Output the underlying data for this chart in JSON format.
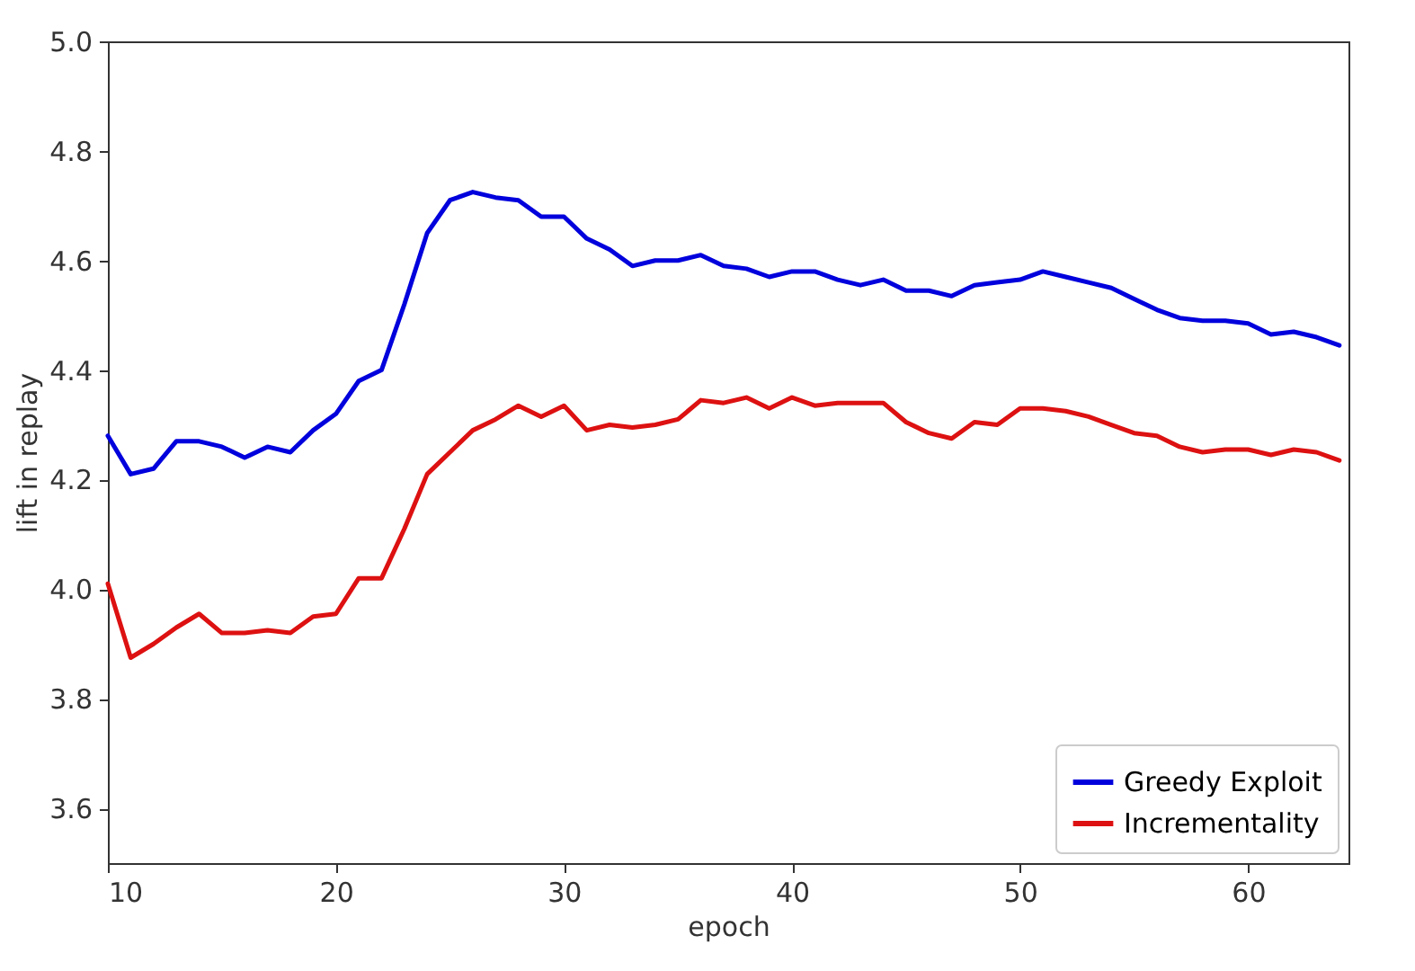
{
  "chart_data": {
    "type": "line",
    "xlabel": "epoch",
    "ylabel": "lift in replay",
    "xlim": [
      10,
      64.4
    ],
    "ylim": [
      3.5,
      5.0
    ],
    "xticks": [
      10,
      20,
      30,
      40,
      50,
      60
    ],
    "yticks": [
      3.6,
      3.8,
      {
        "value": 4,
        "label": "4.0"
      },
      4.2,
      4.4,
      4.6,
      4.8,
      {
        "value": 5,
        "label": "5.0"
      }
    ],
    "x": [
      10,
      11,
      12,
      13,
      14,
      15,
      16,
      17,
      18,
      19,
      20,
      21,
      22,
      23,
      24,
      25,
      26,
      27,
      28,
      29,
      30,
      31,
      32,
      33,
      34,
      35,
      36,
      37,
      38,
      39,
      40,
      41,
      42,
      43,
      44,
      45,
      46,
      47,
      48,
      49,
      50,
      51,
      52,
      53,
      54,
      55,
      56,
      57,
      58,
      59,
      60,
      61,
      62,
      63,
      64
    ],
    "series": [
      {
        "name": "Greedy Exploit",
        "color": "#0000dd",
        "values": [
          4.28,
          4.21,
          4.22,
          4.27,
          4.27,
          4.26,
          4.24,
          4.26,
          4.25,
          4.29,
          4.32,
          4.38,
          4.4,
          4.52,
          4.65,
          4.71,
          4.725,
          4.715,
          4.71,
          4.68,
          4.68,
          4.64,
          4.62,
          4.59,
          4.6,
          4.6,
          4.61,
          4.59,
          4.585,
          4.57,
          4.58,
          4.58,
          4.565,
          4.555,
          4.565,
          4.545,
          4.545,
          4.535,
          4.555,
          4.56,
          4.565,
          4.58,
          4.57,
          4.56,
          4.55,
          4.53,
          4.51,
          4.495,
          4.49,
          4.49,
          4.485,
          4.465,
          4.47,
          4.46,
          4.445
        ]
      },
      {
        "name": "Incrementality",
        "color": "#dd1111",
        "values": [
          4.01,
          3.875,
          3.9,
          3.93,
          3.955,
          3.92,
          3.92,
          3.925,
          3.92,
          3.95,
          3.955,
          4.02,
          4.02,
          4.11,
          4.21,
          4.25,
          4.29,
          4.31,
          4.335,
          4.315,
          4.335,
          4.29,
          4.3,
          4.295,
          4.3,
          4.31,
          4.345,
          4.34,
          4.35,
          4.33,
          4.35,
          4.335,
          4.34,
          4.34,
          4.34,
          4.305,
          4.285,
          4.275,
          4.305,
          4.3,
          4.33,
          4.33,
          4.325,
          4.315,
          4.3,
          4.285,
          4.28,
          4.26,
          4.25,
          4.255,
          4.255,
          4.245,
          4.255,
          4.25,
          4.235
        ]
      }
    ],
    "legend": "bottom right",
    "grid": false,
    "marker": "none",
    "line_style": "solid"
  }
}
